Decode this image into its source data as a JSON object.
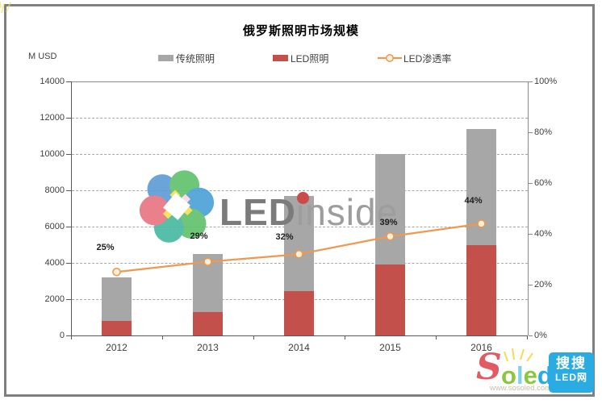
{
  "chart_data": {
    "type": "bar",
    "subtype": "stacked-bars-with-line-overlay",
    "title": "俄罗斯照明市场规模",
    "categories": [
      "2012",
      "2013",
      "2014",
      "2015",
      "2016"
    ],
    "series": [
      {
        "name": "传统照明",
        "type": "bar",
        "stack": "market",
        "color": "#a7a7a7",
        "values": [
          2400,
          3200,
          5250,
          6100,
          6400
        ]
      },
      {
        "name": "LED照明",
        "type": "bar",
        "stack": "market",
        "color": "#c4504c",
        "values": [
          800,
          1300,
          2450,
          3900,
          5000
        ]
      },
      {
        "name": "LED渗透率",
        "type": "line",
        "axis": "right",
        "color": "#f09850",
        "marker_fill": "#fcefd9",
        "marker_stroke": "#e99a52",
        "values": [
          25,
          29,
          32,
          39,
          44
        ],
        "point_labels": [
          "25%",
          "29%",
          "32%",
          "39%",
          "44%"
        ]
      }
    ],
    "stacked_totals": [
      3200,
      4500,
      7700,
      10000,
      11400
    ],
    "left_axis": {
      "unit": "M USD",
      "min": 0,
      "max": 14000,
      "tick_step": 2000,
      "ticks": [
        0,
        2000,
        4000,
        6000,
        8000,
        10000,
        12000,
        14000
      ]
    },
    "right_axis": {
      "min": 0,
      "max": 100,
      "tick_step": 20,
      "ticks": [
        "0%",
        "20%",
        "40%",
        "60%",
        "80%",
        "100%"
      ]
    },
    "grid": "horizontal-dashed",
    "legend_position": "top"
  },
  "watermarks": {
    "center_logo": {
      "led": "LED",
      "inside": "inside"
    },
    "corner_logo": {
      "letters": [
        {
          "ch": "S",
          "color": "#e25a64"
        },
        {
          "ch": "o",
          "color": "#8cc63e"
        },
        {
          "ch": "l",
          "color": "#7ed0f0"
        },
        {
          "ch": "e",
          "color": "#8cc63e"
        },
        {
          "ch": "d",
          "color": "#2aabe2"
        }
      ],
      "badge_line1": "搜搜",
      "badge_line2": "LED网",
      "url": "www.sosoled.com",
      "badge_color": "#2aabe2"
    }
  }
}
